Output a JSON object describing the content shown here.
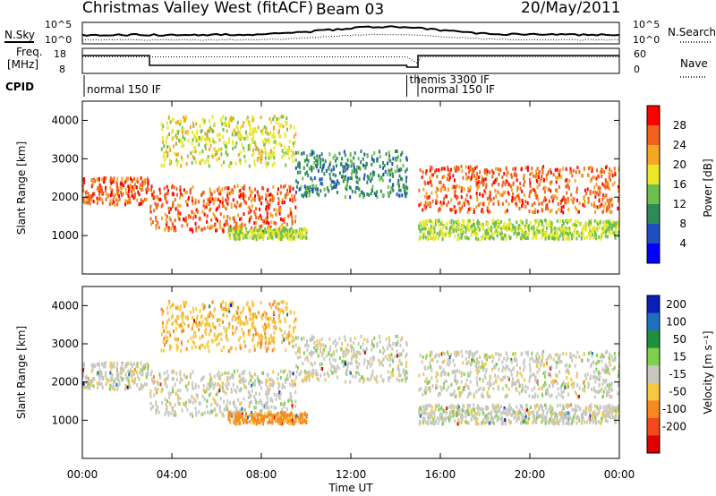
{
  "header": {
    "title": "Christmas Valley West (fitACF)",
    "beam": "Beam 03",
    "date": "20/May/2011"
  },
  "noise_panel": {
    "left_label": "N.Sky",
    "right_label": "N.Search",
    "left_ticks": [
      "10^5",
      "10^0"
    ],
    "right_ticks": [
      "10^5",
      "10^0"
    ]
  },
  "freq_panel": {
    "left_label_line1": "Freq.",
    "left_label_line2": "[MHz]",
    "right_label": "Nave",
    "left_ticks": [
      "18",
      "8"
    ],
    "right_ticks": [
      "60",
      "0"
    ]
  },
  "cpid": {
    "label": "CPID",
    "modes": [
      {
        "name": "normal 150 IF",
        "start_hr": 0
      },
      {
        "name": "themis 3300 IF",
        "start_hr": 14.5
      },
      {
        "name": "normal 150 IF",
        "start_hr": 15.0
      }
    ]
  },
  "power_panel": {
    "ylabel": "Slant Range [km]",
    "yticks": [
      "4000",
      "3000",
      "2000",
      "1000"
    ],
    "colorbar_label": "Power [dB]",
    "colorbar_ticks": [
      "28",
      "24",
      "20",
      "16",
      "12",
      "8",
      "4"
    ],
    "colors": [
      "#0000ff",
      "#1f4fbf",
      "#2e8b57",
      "#6fbf4f",
      "#e8e829",
      "#f5a623",
      "#f0621e",
      "#ff0000"
    ]
  },
  "velocity_panel": {
    "ylabel": "Slant Range [km]",
    "yticks": [
      "4000",
      "3000",
      "2000",
      "1000"
    ],
    "colorbar_label": "Velocity [m s⁻¹]",
    "colorbar_ticks": [
      "200",
      "100",
      "50",
      "15",
      "-15",
      "-50",
      "-100",
      "-200"
    ],
    "colors": [
      "#0a1fb5",
      "#1f6fbf",
      "#1e8f3c",
      "#7fd04c",
      "#c8c8c0",
      "#f5c842",
      "#f58a23",
      "#f04a1e",
      "#e00000"
    ]
  },
  "xaxis": {
    "label": "Time UT",
    "ticks": [
      "00:00",
      "04:00",
      "08:00",
      "12:00",
      "16:00",
      "20:00",
      "00:00"
    ]
  },
  "chart_data": {
    "type": "heatmap",
    "title": "Christmas Valley West (fitACF)",
    "xlabel": "Time UT",
    "ylabel": "Slant Range [km]",
    "xlim_hours": [
      0,
      24
    ],
    "ylim_km": [
      0,
      4500
    ],
    "power_colorbar_db": [
      4,
      8,
      12,
      16,
      20,
      24,
      28
    ],
    "velocity_colorbar_ms": [
      -200,
      -100,
      -50,
      -15,
      15,
      50,
      100,
      200
    ],
    "scatter_bands": [
      {
        "start_hr": 0.0,
        "end_hr": 3.0,
        "range_low_km": 1800,
        "range_high_km": 2500,
        "power_db": 26,
        "velocity_ms": 0
      },
      {
        "start_hr": 3.0,
        "end_hr": 9.5,
        "range_low_km": 1100,
        "range_high_km": 2300,
        "power_db": 26,
        "velocity_ms": 0
      },
      {
        "start_hr": 3.5,
        "end_hr": 9.5,
        "range_low_km": 2800,
        "range_high_km": 4100,
        "power_db": 18,
        "velocity_ms": -40
      },
      {
        "start_hr": 6.5,
        "end_hr": 10.0,
        "range_low_km": 900,
        "range_high_km": 1200,
        "power_db": 16,
        "velocity_ms": -60
      },
      {
        "start_hr": 9.5,
        "end_hr": 14.5,
        "range_low_km": 2000,
        "range_high_km": 3200,
        "power_db": 10,
        "velocity_ms": 0
      },
      {
        "start_hr": 15.0,
        "end_hr": 24.0,
        "range_low_km": 1600,
        "range_high_km": 2800,
        "power_db": 26,
        "velocity_ms": 0
      },
      {
        "start_hr": 15.0,
        "end_hr": 24.0,
        "range_low_km": 900,
        "range_high_km": 1400,
        "power_db": 16,
        "velocity_ms": 0
      }
    ]
  }
}
